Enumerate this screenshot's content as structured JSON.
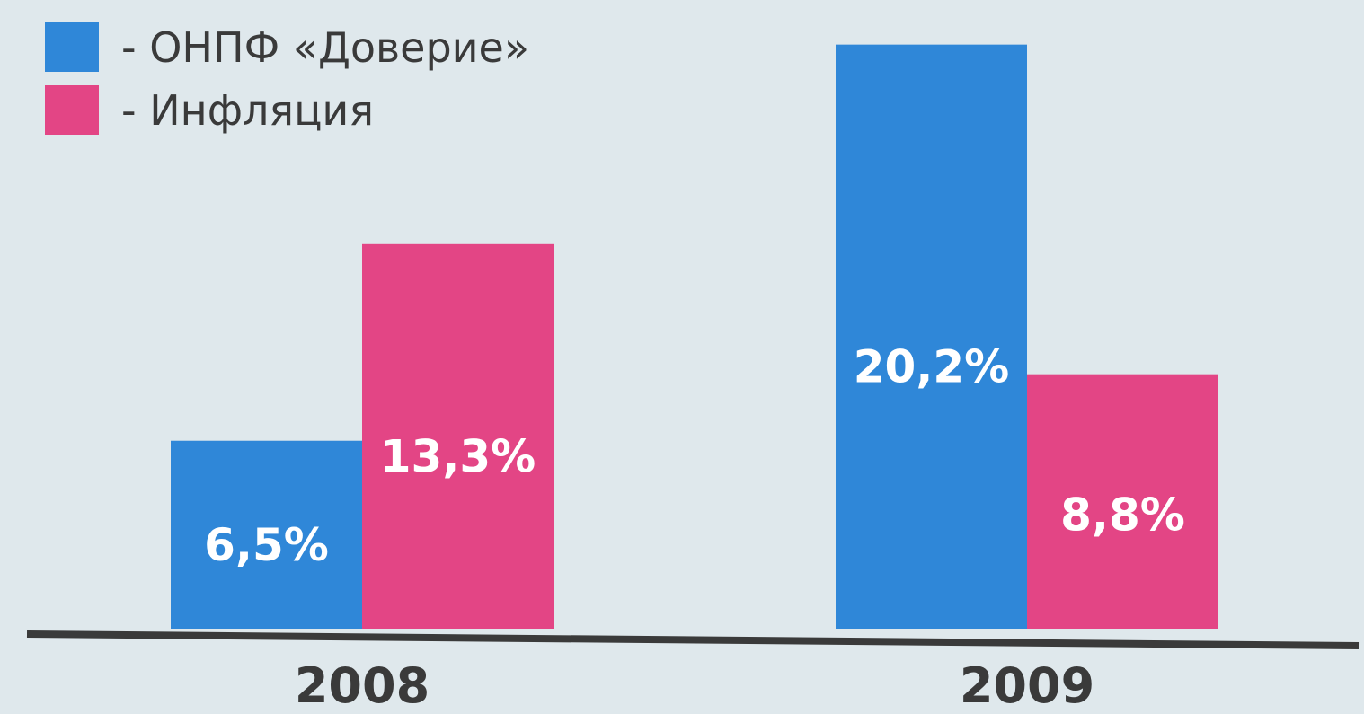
{
  "chart_data": {
    "type": "bar",
    "categories": [
      "2008",
      "2009"
    ],
    "series": [
      {
        "name": "- ОНПФ «Доверие»",
        "values": [
          6.5,
          20.2
        ],
        "labels": [
          "6,5%",
          "20,2%"
        ],
        "color": "#2f87d8"
      },
      {
        "name": "- Инфляция",
        "values": [
          13.3,
          8.8
        ],
        "labels": [
          "13,3%",
          "8,8%"
        ],
        "color": "#e34585"
      }
    ],
    "title": "",
    "xlabel": "",
    "ylabel": "",
    "ylim": [
      0,
      21
    ],
    "legend_position": "top-left",
    "grid": false,
    "axis_color": "#3a3a3a",
    "background": "#dfe8ec"
  }
}
